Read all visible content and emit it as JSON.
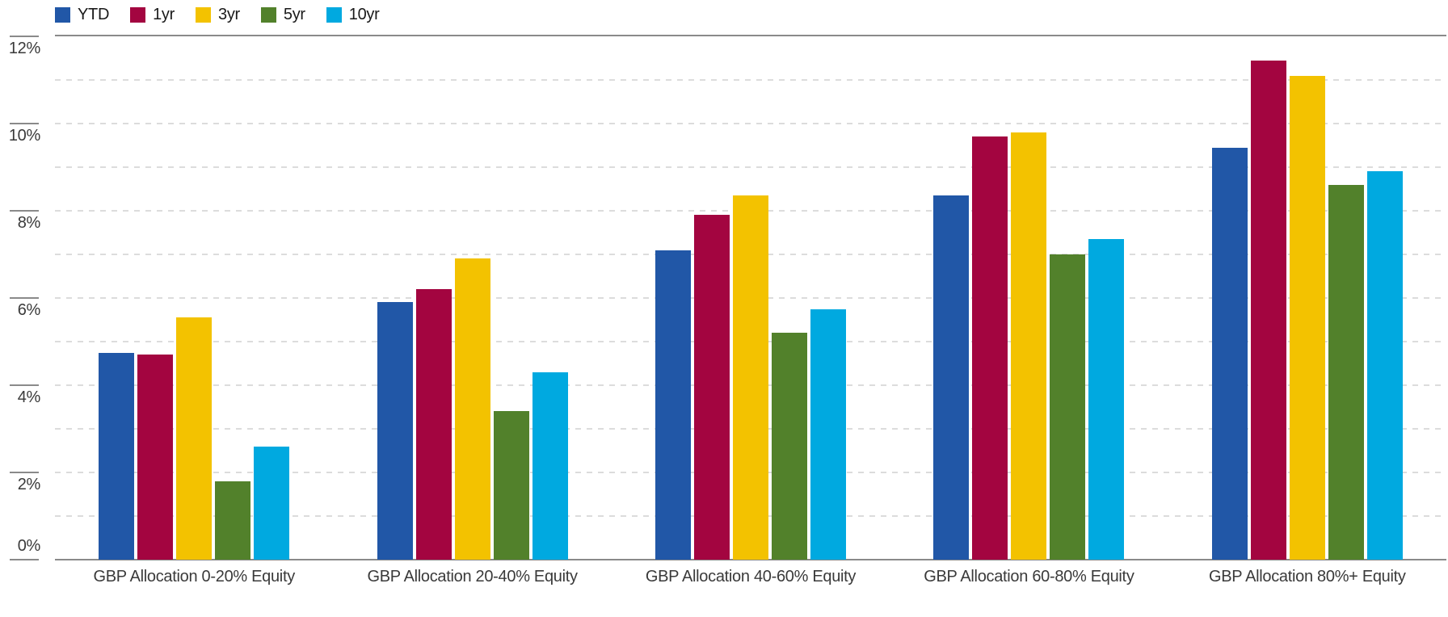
{
  "chart_data": {
    "type": "bar",
    "title": "",
    "categories": [
      "GBP Allocation 0-20% Equity",
      "GBP Allocation 20-40% Equity",
      "GBP Allocation 40-60% Equity",
      "GBP Allocation 60-80% Equity",
      "GBP Allocation 80%+ Equity"
    ],
    "series": [
      {
        "name": "YTD",
        "color": "#2157a7",
        "values": [
          4.75,
          5.9,
          7.1,
          8.35,
          9.45
        ]
      },
      {
        "name": "1yr",
        "color": "#a30540",
        "values": [
          4.7,
          6.2,
          7.9,
          9.7,
          11.45
        ]
      },
      {
        "name": "3yr",
        "color": "#f3c200",
        "values": [
          5.55,
          6.9,
          8.35,
          9.8,
          11.1
        ]
      },
      {
        "name": "5yr",
        "color": "#52812b",
        "values": [
          1.8,
          3.4,
          5.2,
          7.0,
          8.6
        ]
      },
      {
        "name": "10yr",
        "color": "#00a9e0",
        "values": [
          2.6,
          4.3,
          5.75,
          7.35,
          8.9
        ]
      }
    ],
    "xlabel": "",
    "ylabel": "",
    "ylim": [
      0,
      12
    ],
    "y_tick_step": 2,
    "y_tick_labels": [
      "0%",
      "2%",
      "4%",
      "6%",
      "8%",
      "10%",
      "12%"
    ],
    "gridline_step": 1,
    "grid": "dashed horizontal gridlines at every 1%",
    "legend_position": "top-left",
    "legend_labels": [
      "YTD",
      "1yr",
      "3yr",
      "5yr",
      "10yr"
    ]
  },
  "colors": {
    "axis_line": "#8a8a8a",
    "gridline": "#dcdcdc",
    "text": "#3a3a3a"
  }
}
